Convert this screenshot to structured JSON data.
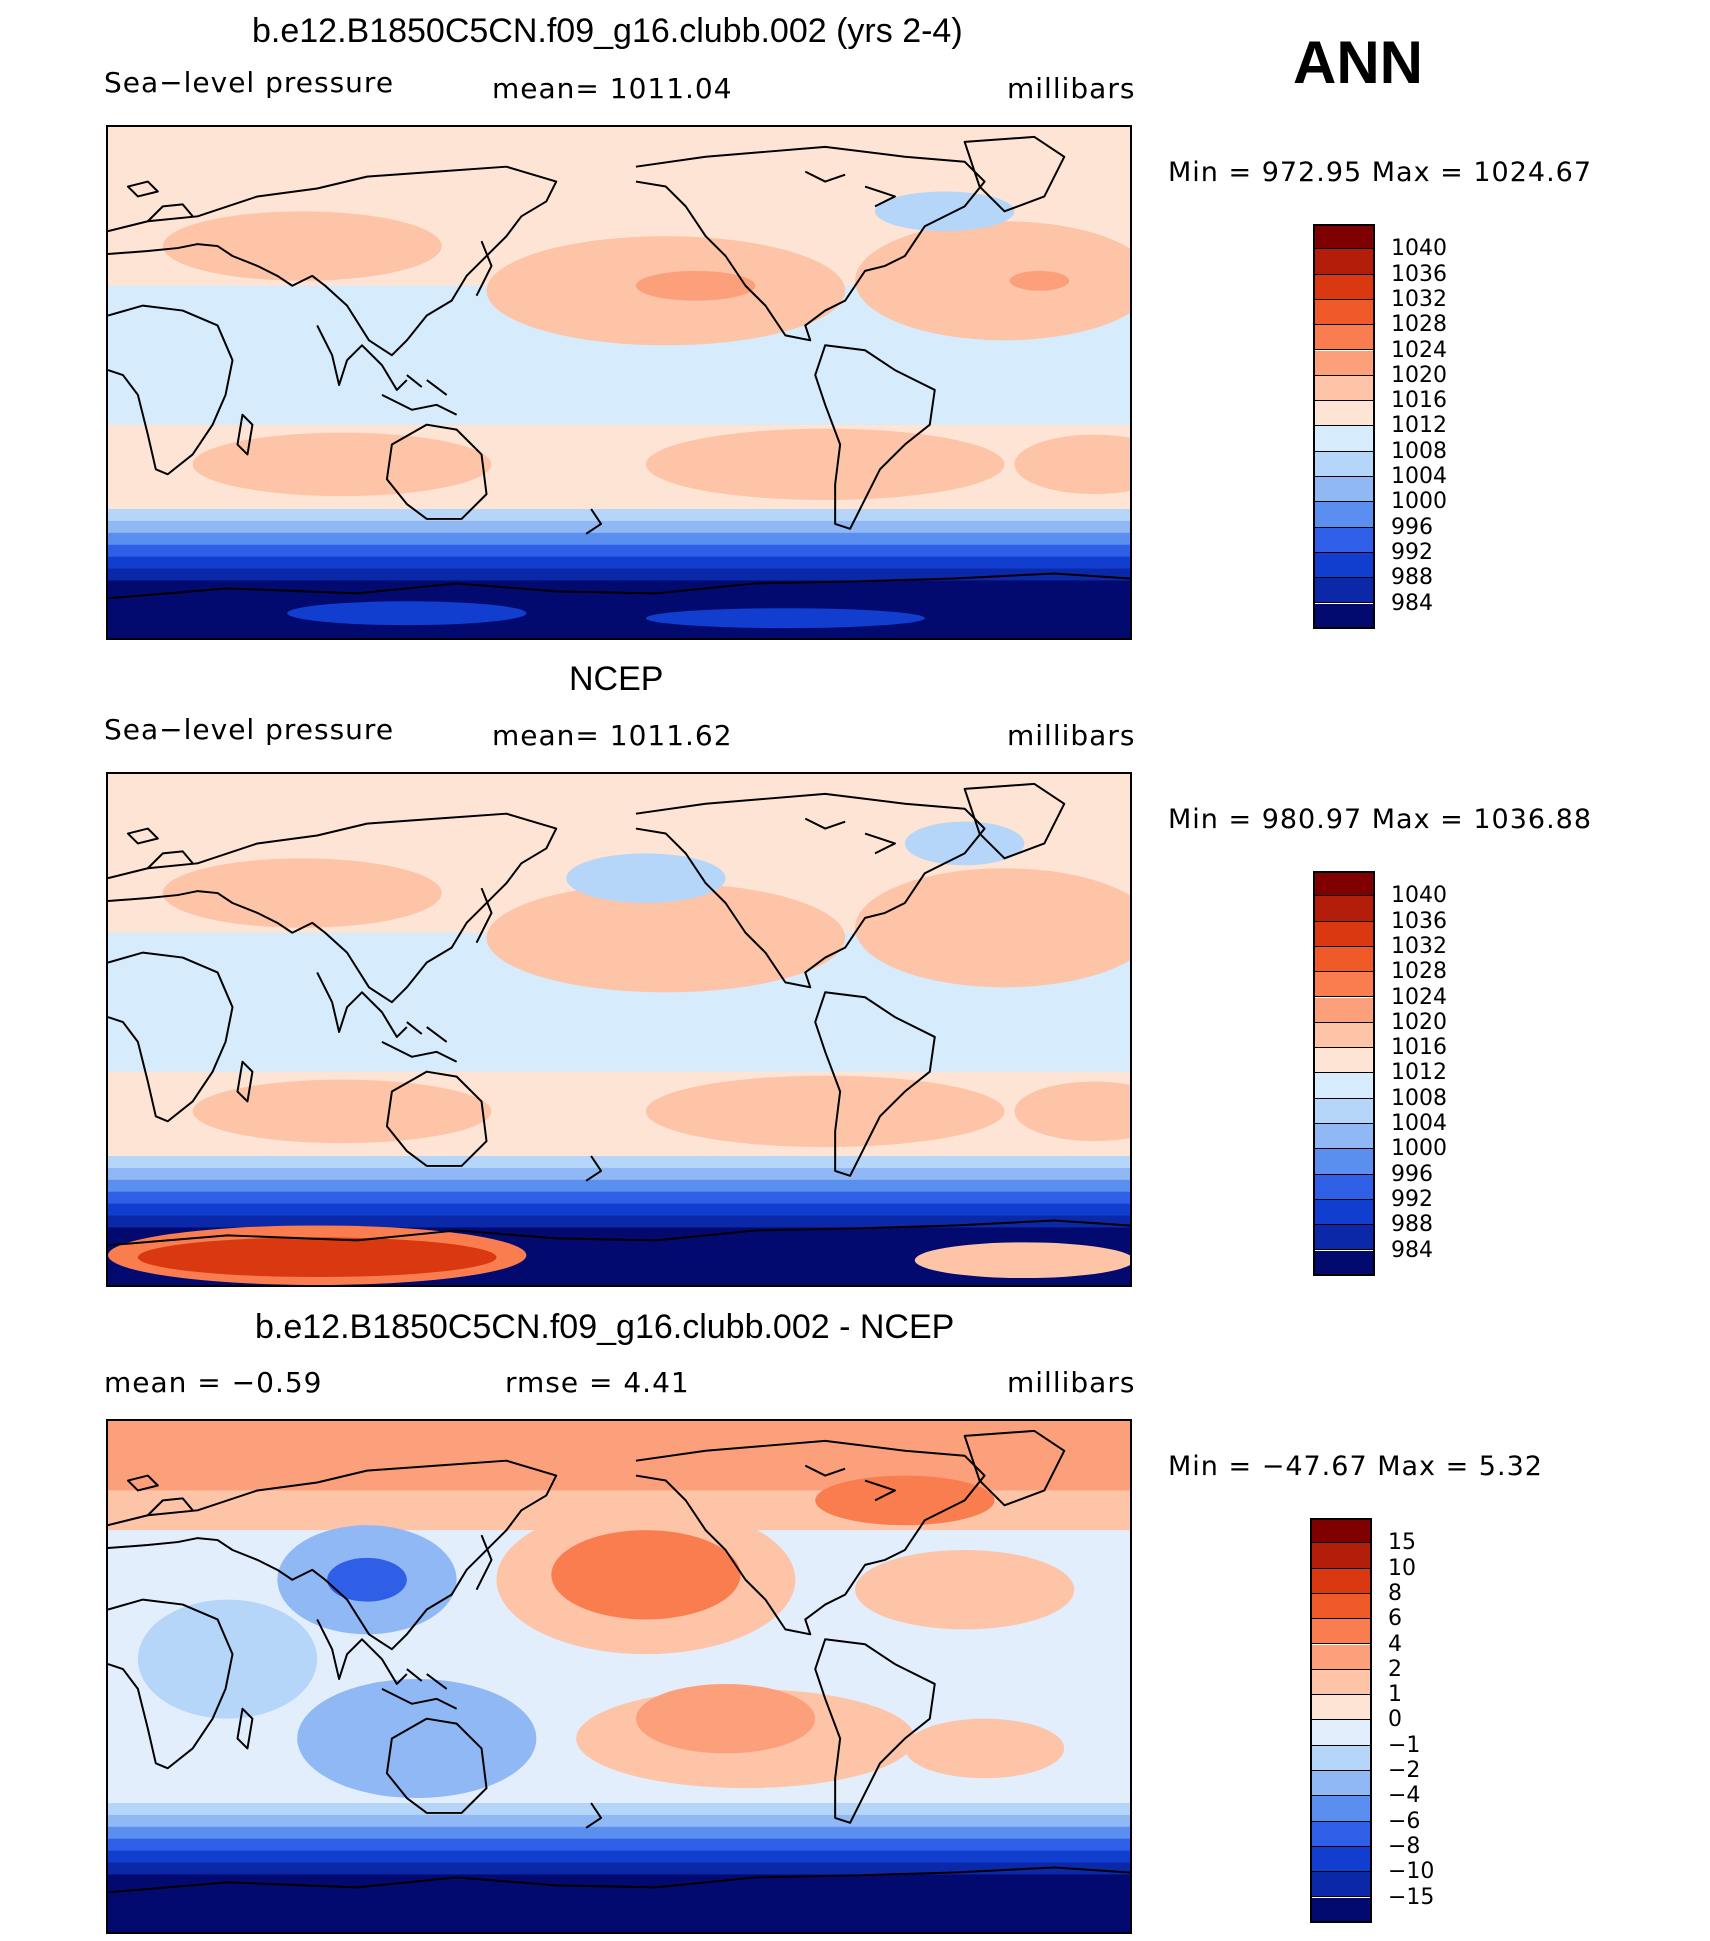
{
  "season": "ANN",
  "panels": [
    {
      "title": "b.e12.B1850C5CN.f09_g16.clubb.002 (yrs 2-4)",
      "left_label": "Sea−level pressure",
      "center_label": "mean=  1011.04",
      "right_label": "millibars",
      "minmax": "Min  =  972.95  Max  =  1024.67",
      "variant": "model"
    },
    {
      "title": "NCEP",
      "left_label": "Sea−level pressure",
      "center_label": "mean=  1011.62",
      "right_label": "millibars",
      "minmax": "Min  =  980.97  Max  =  1036.88",
      "variant": "obs"
    },
    {
      "title": "b.e12.B1850C5CN.f09_g16.clubb.002 - NCEP",
      "left_label": "mean  =    −0.59",
      "center_label": "rmse  =     4.41",
      "right_label": "millibars",
      "minmax": "Min  =  −47.67  Max  =      5.32",
      "variant": "diff"
    }
  ],
  "colorbars": [
    {
      "labels": [
        "1040",
        "1036",
        "1032",
        "1028",
        "1024",
        "1020",
        "1016",
        "1012",
        "1008",
        "1004",
        "1000",
        "996",
        "992",
        "988",
        "984"
      ],
      "colors": [
        "#7f0000",
        "#b31e0a",
        "#d93810",
        "#f05a28",
        "#fa7d50",
        "#fca07c",
        "#fdc4a8",
        "#fee4d4",
        "#d6ebfb",
        "#b5d6f9",
        "#8fb8f5",
        "#5a8ff0",
        "#2f5fe6",
        "#123ed0",
        "#0a28a8",
        "#020a70"
      ]
    },
    {
      "labels": [
        "1040",
        "1036",
        "1032",
        "1028",
        "1024",
        "1020",
        "1016",
        "1012",
        "1008",
        "1004",
        "1000",
        "996",
        "992",
        "988",
        "984"
      ],
      "colors": [
        "#7f0000",
        "#b31e0a",
        "#d93810",
        "#f05a28",
        "#fa7d50",
        "#fca07c",
        "#fdc4a8",
        "#fee4d4",
        "#d6ebfb",
        "#b5d6f9",
        "#8fb8f5",
        "#5a8ff0",
        "#2f5fe6",
        "#123ed0",
        "#0a28a8",
        "#020a70"
      ]
    },
    {
      "labels": [
        "15",
        "10",
        "8",
        "6",
        "4",
        "2",
        "1",
        "0",
        "−1",
        "−2",
        "−4",
        "−6",
        "−8",
        "−10",
        "−15"
      ],
      "colors": [
        "#7f0000",
        "#b31e0a",
        "#d93810",
        "#f05a28",
        "#fa7d50",
        "#fca07c",
        "#fdc4a8",
        "#fee4d4",
        "#e3eefc",
        "#b5d6f9",
        "#8fb8f5",
        "#5a8ff0",
        "#2f5fe6",
        "#123ed0",
        "#0a28a8",
        "#020a70"
      ]
    }
  ],
  "chart_data": [
    {
      "type": "heatmap",
      "title": "b.e12.B1850C5CN.f09_g16.clubb.002 (yrs 2-4)",
      "variable": "Sea−level pressure",
      "units": "millibars",
      "mean": 1011.04,
      "min": 972.95,
      "max": 1024.67,
      "contour_levels": [
        984,
        988,
        992,
        996,
        1000,
        1004,
        1008,
        1012,
        1016,
        1020,
        1024,
        1028,
        1032,
        1036,
        1040
      ]
    },
    {
      "type": "heatmap",
      "title": "NCEP",
      "variable": "Sea−level pressure",
      "units": "millibars",
      "mean": 1011.62,
      "min": 980.97,
      "max": 1036.88,
      "contour_levels": [
        984,
        988,
        992,
        996,
        1000,
        1004,
        1008,
        1012,
        1016,
        1020,
        1024,
        1028,
        1032,
        1036,
        1040
      ]
    },
    {
      "type": "heatmap",
      "title": "b.e12.B1850C5CN.f09_g16.clubb.002 - NCEP",
      "units": "millibars",
      "mean": -0.59,
      "rmse": 4.41,
      "min": -47.67,
      "max": 5.32,
      "contour_levels": [
        -15,
        -10,
        -8,
        -6,
        -4,
        -2,
        -1,
        0,
        1,
        2,
        4,
        6,
        8,
        10,
        15
      ]
    }
  ]
}
